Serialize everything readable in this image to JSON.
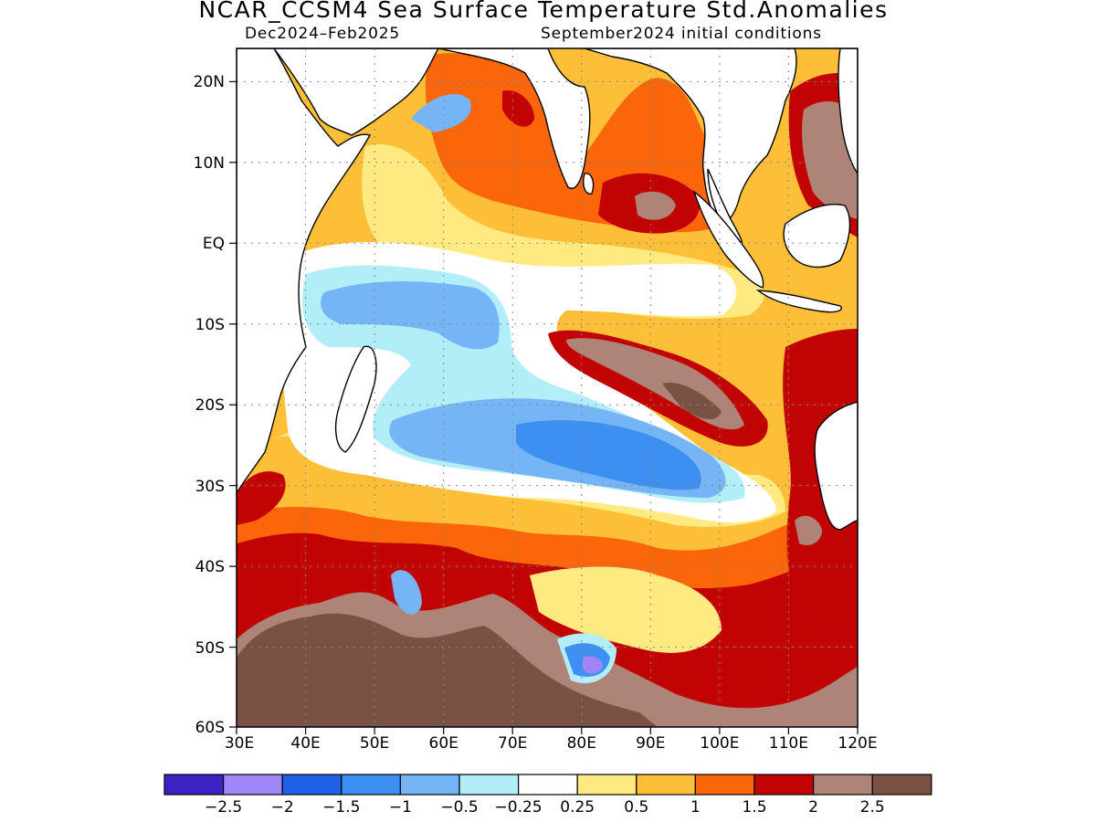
{
  "title": "NCAR_CCSM4 Sea Surface Temperature Std.Anomalies",
  "subtitle_left": "Dec2024–Feb2025",
  "subtitle_right": "September2024 initial conditions",
  "map": {
    "lon_range": [
      30,
      120
    ],
    "lat_range": [
      -60,
      24
    ],
    "lat_ticks": [
      {
        "value": 20,
        "label": "20N"
      },
      {
        "value": 10,
        "label": "10N"
      },
      {
        "value": 0,
        "label": "EQ"
      },
      {
        "value": -10,
        "label": "10S"
      },
      {
        "value": -20,
        "label": "20S"
      },
      {
        "value": -30,
        "label": "30S"
      },
      {
        "value": -40,
        "label": "40S"
      },
      {
        "value": -50,
        "label": "50S"
      },
      {
        "value": -60,
        "label": "60S"
      }
    ],
    "lon_ticks": [
      {
        "value": 30,
        "label": "30E"
      },
      {
        "value": 40,
        "label": "40E"
      },
      {
        "value": 50,
        "label": "50E"
      },
      {
        "value": 60,
        "label": "60E"
      },
      {
        "value": 70,
        "label": "70E"
      },
      {
        "value": 80,
        "label": "80E"
      },
      {
        "value": 90,
        "label": "90E"
      },
      {
        "value": 100,
        "label": "100E"
      },
      {
        "value": 110,
        "label": "110E"
      },
      {
        "value": 120,
        "label": "120E"
      }
    ],
    "grid": "dotted"
  },
  "colorbar": {
    "colors": [
      "#3b22c2",
      "#9f86f6",
      "#1f62e8",
      "#3d90f2",
      "#76b5f5",
      "#b2eef8",
      "#ffffff",
      "#feea80",
      "#fdbf38",
      "#fb660a",
      "#c20304",
      "#ae8478",
      "#7a5244"
    ],
    "labels": [
      "−2.5",
      "−2",
      "−1.5",
      "−1",
      "−0.5",
      "−0.25",
      "0.25",
      "0.5",
      "1",
      "1.5",
      "2",
      "2.5"
    ]
  }
}
